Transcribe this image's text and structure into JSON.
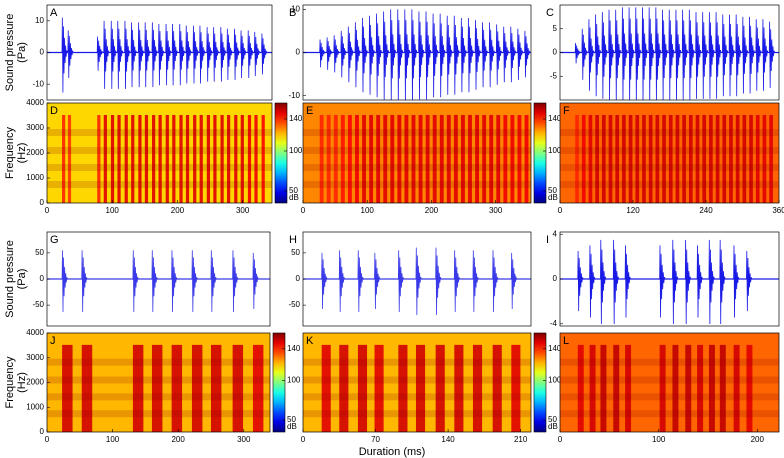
{
  "figure": {
    "xlabel": "Duration (ms)"
  },
  "chart_data": [
    {
      "type": "waveform",
      "panel": "A",
      "ylabel": [
        "Sound pressure",
        "(Pa)"
      ],
      "xlim": [
        0,
        345
      ],
      "ylim": [
        -15,
        15
      ],
      "yticks": [
        -10,
        0,
        10
      ],
      "color": "#1a1ae6",
      "pulse_times": [
        23,
        32,
        77,
        87,
        98,
        108,
        119,
        129,
        140,
        150,
        161,
        171,
        182,
        192,
        203,
        213,
        224,
        234,
        245,
        255,
        266,
        276,
        287,
        297,
        308,
        318,
        329
      ],
      "pulse_amps": [
        11,
        7,
        5,
        10,
        10,
        10,
        10,
        9.5,
        9.5,
        9.5,
        9.5,
        9,
        9,
        9,
        9,
        8.5,
        8.5,
        8.5,
        8,
        8,
        8,
        7.5,
        7.5,
        7,
        7,
        6.5,
        6
      ]
    },
    {
      "type": "waveform",
      "panel": "B",
      "xlim": [
        0,
        355
      ],
      "ylim": [
        -11,
        11
      ],
      "yticks": [
        -10,
        0,
        10
      ],
      "color": "#1a1ae6",
      "pulse_times": [
        26,
        37,
        48,
        59,
        70,
        81,
        92,
        103,
        114,
        125,
        136,
        147,
        158,
        169,
        180,
        191,
        202,
        213,
        224,
        235,
        246,
        257,
        268,
        279,
        290,
        301,
        312,
        323,
        334,
        345
      ],
      "pulse_amps": [
        3,
        3.5,
        4,
        5,
        6,
        7,
        8,
        8.5,
        9,
        9.5,
        10,
        10,
        10,
        10,
        9.5,
        9.5,
        9,
        9,
        8.5,
        8.5,
        8,
        8,
        7.5,
        7,
        7,
        6.5,
        6,
        6,
        5.5,
        5
      ]
    },
    {
      "type": "waveform",
      "panel": "C",
      "xlim": [
        0,
        360
      ],
      "ylim": [
        -10,
        10
      ],
      "yticks": [
        -5,
        0,
        5
      ],
      "color": "#1a1ae6",
      "pulse_times": [
        25,
        36,
        47,
        58,
        69,
        80,
        91,
        102,
        113,
        124,
        135,
        146,
        157,
        168,
        179,
        190,
        201,
        212,
        223,
        234,
        245,
        256,
        267,
        278,
        289,
        300,
        311,
        322,
        333,
        344
      ],
      "pulse_amps": [
        2,
        5,
        7,
        8,
        8.5,
        9,
        9,
        9.5,
        9.5,
        9.5,
        9.5,
        9.5,
        9.5,
        9,
        9,
        9,
        9,
        9,
        8.5,
        8.5,
        8.5,
        8.5,
        8,
        8,
        8,
        7.5,
        7.5,
        7,
        7,
        6.5
      ]
    },
    {
      "type": "spectrogram",
      "panel": "D",
      "ylabel": [
        "Frequency",
        "(Hz)"
      ],
      "xlim": [
        0,
        345
      ],
      "xticks": [
        0,
        100,
        200,
        300
      ],
      "ylim": [
        0,
        4000
      ],
      "yticks": [
        0,
        1000,
        2000,
        3000,
        4000
      ],
      "background_db": 118,
      "pulse_times": [
        23,
        32,
        77,
        87,
        98,
        108,
        119,
        129,
        140,
        150,
        161,
        171,
        182,
        192,
        203,
        213,
        224,
        234,
        245,
        255,
        266,
        276,
        287,
        297,
        308,
        318,
        329
      ],
      "pulse_db": [
        140,
        138,
        140,
        148,
        148,
        148,
        148,
        148,
        148,
        148,
        148,
        148,
        148,
        148,
        148,
        148,
        148,
        148,
        148,
        148,
        148,
        148,
        148,
        148,
        146,
        146,
        144
      ],
      "colorbar": {
        "clim": [
          35,
          160
        ],
        "ticks": [
          50,
          100,
          140
        ],
        "label": "dB"
      }
    },
    {
      "type": "spectrogram",
      "panel": "E",
      "xlim": [
        0,
        355
      ],
      "xticks": [
        0,
        100,
        200,
        300
      ],
      "ylim": [
        0,
        4000
      ],
      "background_db": 128,
      "pulse_times": [
        26,
        37,
        48,
        59,
        70,
        81,
        92,
        103,
        114,
        125,
        136,
        147,
        158,
        169,
        180,
        191,
        202,
        213,
        224,
        235,
        246,
        257,
        268,
        279,
        290,
        301,
        312,
        323,
        334,
        345
      ],
      "pulse_db": [
        140,
        140,
        140,
        142,
        144,
        146,
        148,
        148,
        148,
        148,
        148,
        148,
        148,
        148,
        148,
        148,
        148,
        148,
        148,
        148,
        148,
        148,
        148,
        148,
        148,
        148,
        146,
        146,
        146,
        146
      ],
      "colorbar": {
        "clim": [
          35,
          160
        ],
        "ticks": [
          50,
          100,
          140
        ],
        "label": "dB"
      }
    },
    {
      "type": "spectrogram",
      "panel": "F",
      "xlim": [
        0,
        360
      ],
      "xticks": [
        0,
        120,
        240,
        360
      ],
      "ylim": [
        0,
        4000
      ],
      "background_db": 132,
      "pulse_times": [
        25,
        36,
        47,
        58,
        69,
        80,
        91,
        102,
        113,
        124,
        135,
        146,
        157,
        168,
        179,
        190,
        201,
        212,
        223,
        234,
        245,
        256,
        267,
        278,
        289,
        300,
        311,
        322,
        333,
        344
      ],
      "pulse_db": [
        140,
        146,
        148,
        150,
        150,
        150,
        150,
        150,
        150,
        150,
        150,
        150,
        150,
        150,
        150,
        150,
        150,
        150,
        150,
        150,
        150,
        150,
        150,
        150,
        150,
        150,
        150,
        148,
        148,
        148
      ]
    },
    {
      "type": "waveform",
      "panel": "G",
      "ylabel": [
        "Sound pressure",
        "(Pa)"
      ],
      "xlim": [
        0,
        340
      ],
      "ylim": [
        -90,
        90
      ],
      "yticks": [
        -50,
        0,
        50
      ],
      "color": "#3a3ae8",
      "pulse_times": [
        23,
        53,
        131,
        160,
        190,
        221,
        250,
        283,
        314
      ],
      "pulse_amps": [
        55,
        55,
        55,
        55,
        55,
        55,
        55,
        55,
        50
      ]
    },
    {
      "type": "waveform",
      "panel": "H",
      "xlim": [
        0,
        220
      ],
      "ylim": [
        -90,
        90
      ],
      "yticks": [
        -50,
        0,
        50
      ],
      "color": "#3a3ae8",
      "pulse_times": [
        18,
        35,
        53,
        69,
        92,
        109,
        128,
        146,
        164,
        183,
        201
      ],
      "pulse_amps": [
        50,
        55,
        55,
        50,
        55,
        60,
        60,
        55,
        55,
        55,
        50
      ]
    },
    {
      "type": "waveform",
      "panel": "I",
      "xlim": [
        0,
        222
      ],
      "ylim": [
        -4.2,
        4.2
      ],
      "yticks": [
        -4,
        0,
        4
      ],
      "color": "#1a1ae6",
      "pulse_times": [
        18,
        30,
        41,
        54,
        66,
        101,
        114,
        127,
        139,
        151,
        162,
        176,
        189
      ],
      "pulse_amps": [
        2.5,
        3,
        3.5,
        3.5,
        3,
        3,
        3.5,
        3.5,
        3,
        3.5,
        3.5,
        3,
        2.5
      ]
    },
    {
      "type": "spectrogram",
      "panel": "J",
      "ylabel": [
        "Frequency",
        "(Hz)"
      ],
      "xlim": [
        0,
        340
      ],
      "xticks": [
        0,
        100,
        200,
        300
      ],
      "ylim": [
        0,
        4000
      ],
      "yticks": [
        0,
        1000,
        2000,
        3000,
        4000
      ],
      "background_db": 122,
      "pulse_times": [
        23,
        53,
        131,
        160,
        190,
        221,
        250,
        283,
        314
      ],
      "pulse_db": [
        150,
        150,
        150,
        150,
        150,
        150,
        150,
        150,
        148
      ],
      "colorbar": {
        "clim": [
          35,
          160
        ],
        "ticks": [
          50,
          100,
          140
        ],
        "label": "dB"
      }
    },
    {
      "type": "spectrogram",
      "panel": "K",
      "xlim": [
        0,
        220
      ],
      "xticks": [
        0,
        70,
        140,
        210
      ],
      "ylim": [
        0,
        4000
      ],
      "background_db": 122,
      "pulse_times": [
        18,
        35,
        53,
        69,
        92,
        109,
        128,
        146,
        164,
        183,
        201
      ],
      "pulse_db": [
        148,
        150,
        150,
        148,
        150,
        150,
        150,
        150,
        150,
        150,
        148
      ],
      "colorbar": {
        "clim": [
          35,
          160
        ],
        "ticks": [
          50,
          100,
          140
        ],
        "label": "dB"
      }
    },
    {
      "type": "spectrogram",
      "panel": "L",
      "xlim": [
        0,
        222
      ],
      "xticks": [
        0,
        100,
        200
      ],
      "ylim": [
        0,
        4000
      ],
      "background_db": 132,
      "pulse_times": [
        18,
        30,
        41,
        54,
        66,
        101,
        114,
        127,
        139,
        151,
        162,
        176,
        189
      ],
      "pulse_db": [
        148,
        150,
        152,
        152,
        150,
        150,
        152,
        152,
        150,
        152,
        152,
        150,
        148
      ]
    }
  ]
}
